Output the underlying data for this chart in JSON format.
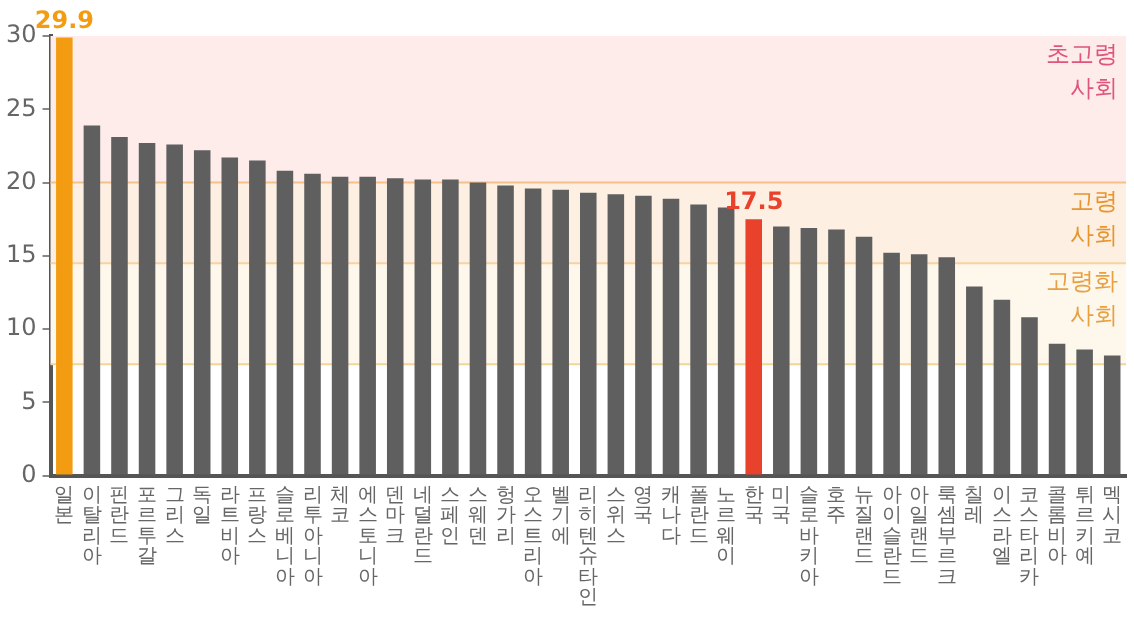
{
  "chart_data": {
    "type": "bar",
    "categories": [
      "일본",
      "이탈리아",
      "핀란드",
      "포르투갈",
      "그리스",
      "독일",
      "라트비아",
      "프랑스",
      "슬로베니아",
      "리투아니아",
      "체코",
      "에스토니아",
      "덴마크",
      "네덜란드",
      "스페인",
      "스웨덴",
      "헝가리",
      "오스트리아",
      "벨기에",
      "리히텐슈타인",
      "스위스",
      "영국",
      "캐나다",
      "폴란드",
      "노르웨이",
      "한국",
      "미국",
      "슬로바키아",
      "호주",
      "뉴질랜드",
      "아이슬란드",
      "아일랜드",
      "룩셈부르크",
      "칠레",
      "이스라엘",
      "코스타리카",
      "콜롬비아",
      "튀르키예",
      "멕시코"
    ],
    "values": [
      29.9,
      23.9,
      23.1,
      22.7,
      22.6,
      22.2,
      21.7,
      21.5,
      20.8,
      20.6,
      20.4,
      20.4,
      20.3,
      20.2,
      20.2,
      20.0,
      19.8,
      19.6,
      19.5,
      19.3,
      19.2,
      19.1,
      18.9,
      18.5,
      18.3,
      17.5,
      17.0,
      16.9,
      16.8,
      16.3,
      15.2,
      15.1,
      14.9,
      12.9,
      12.0,
      10.8,
      9.0,
      8.6,
      8.2
    ],
    "colors": [
      "#f39c12",
      "#5f5f5f",
      "#5f5f5f",
      "#5f5f5f",
      "#5f5f5f",
      "#5f5f5f",
      "#5f5f5f",
      "#5f5f5f",
      "#5f5f5f",
      "#5f5f5f",
      "#5f5f5f",
      "#5f5f5f",
      "#5f5f5f",
      "#5f5f5f",
      "#5f5f5f",
      "#5f5f5f",
      "#5f5f5f",
      "#5f5f5f",
      "#5f5f5f",
      "#5f5f5f",
      "#5f5f5f",
      "#5f5f5f",
      "#5f5f5f",
      "#5f5f5f",
      "#5f5f5f",
      "#e8412c",
      "#5f5f5f",
      "#5f5f5f",
      "#5f5f5f",
      "#5f5f5f",
      "#5f5f5f",
      "#5f5f5f",
      "#5f5f5f",
      "#5f5f5f",
      "#5f5f5f",
      "#5f5f5f",
      "#5f5f5f",
      "#5f5f5f",
      "#5f5f5f"
    ],
    "value_labels": [
      "29.9",
      null,
      null,
      null,
      null,
      null,
      null,
      null,
      null,
      null,
      null,
      null,
      null,
      null,
      null,
      null,
      null,
      null,
      null,
      null,
      null,
      null,
      null,
      null,
      null,
      "17.5",
      null,
      null,
      null,
      null,
      null,
      null,
      null,
      null,
      null,
      null,
      null,
      null,
      null
    ],
    "ylim": [
      0,
      30
    ],
    "yticks": [
      0,
      5,
      10,
      15,
      20,
      25,
      30
    ],
    "grid": false,
    "legend": false,
    "bands": [
      {
        "axis": "y",
        "from": 20,
        "to": 30,
        "label": "초고령 사회",
        "color": "#fdecea"
      },
      {
        "axis": "y",
        "from": 14.5,
        "to": 20,
        "label": "고령 사회",
        "color": "#fdf0e3"
      },
      {
        "axis": "y",
        "from": 7.6,
        "to": 14.5,
        "label": "고령화 사회",
        "color": "#fef7ec"
      }
    ],
    "ref_lines": [
      {
        "axis": "y",
        "value": 20,
        "color": "#f5c08a"
      },
      {
        "axis": "y",
        "value": 14.5,
        "color": "#f8d2a0"
      },
      {
        "axis": "y",
        "value": 7.6,
        "color": "#f3d59a"
      }
    ]
  }
}
